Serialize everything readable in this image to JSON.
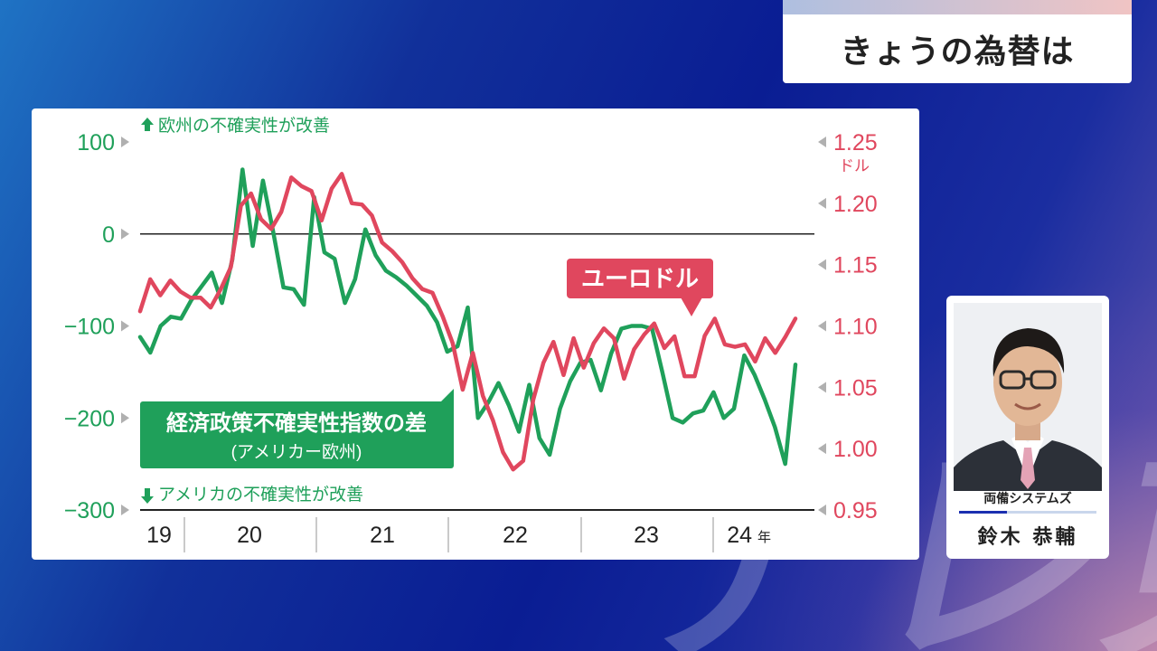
{
  "header": {
    "title": "きょうの為替は"
  },
  "watermark": {
    "text": "テレ東"
  },
  "person": {
    "company": "両備システムズ",
    "name": "鈴木 恭輔"
  },
  "colors": {
    "green": "#1fa05a",
    "red": "#e0475e",
    "axis": "#222222"
  },
  "chart_data": {
    "type": "line",
    "top_note": "欧州の不確実性が改善",
    "bottom_note": "アメリカの不確実性が改善",
    "left_axis": {
      "ticks": [
        "100",
        "0",
        "−100",
        "−200",
        "−300"
      ],
      "range": [
        -300,
        100
      ]
    },
    "right_axis": {
      "ticks": [
        "1.25",
        "1.20",
        "1.15",
        "1.10",
        "1.05",
        "1.00",
        "0.95"
      ],
      "unit": "ドル",
      "range": [
        0.95,
        1.25
      ]
    },
    "x_axis": {
      "labels": [
        "19",
        "20",
        "21",
        "22",
        "23",
        "24"
      ],
      "year_suffix": "年"
    },
    "series": [
      {
        "name": "経済政策不確実性指数の差",
        "sub_label": "(アメリカー欧州)",
        "axis": "left",
        "values": [
          -112,
          -129,
          -100,
          -90,
          -92,
          -72,
          -57,
          -42,
          -75,
          -28,
          70,
          -13,
          58,
          2,
          -58,
          -60,
          -77,
          40,
          -20,
          -27,
          -75,
          -49,
          5,
          -23,
          -40,
          -47,
          -56,
          -67,
          -78,
          -96,
          -128,
          -122,
          -80,
          -200,
          -183,
          -162,
          -186,
          -215,
          -164,
          -222,
          -240,
          -190,
          -160,
          -140,
          -137,
          -170,
          -130,
          -103,
          -100,
          -100,
          -103,
          -150,
          -200,
          -205,
          -195,
          -192,
          -172,
          -200,
          -190,
          -132,
          -153,
          -180,
          -210,
          -250,
          -142
        ]
      },
      {
        "name": "ユーロドル",
        "axis": "right",
        "values": [
          1.112,
          1.138,
          1.125,
          1.137,
          1.128,
          1.123,
          1.123,
          1.115,
          1.13,
          1.148,
          1.198,
          1.208,
          1.187,
          1.179,
          1.193,
          1.221,
          1.214,
          1.21,
          1.186,
          1.212,
          1.224,
          1.2,
          1.199,
          1.19,
          1.168,
          1.161,
          1.152,
          1.139,
          1.13,
          1.127,
          1.108,
          1.086,
          1.048,
          1.078,
          1.043,
          1.023,
          0.997,
          0.983,
          0.99,
          1.04,
          1.07,
          1.087,
          1.06,
          1.09,
          1.066,
          1.086,
          1.098,
          1.09,
          1.057,
          1.081,
          1.093,
          1.102,
          1.082,
          1.0915,
          1.059,
          1.059,
          1.092,
          1.106,
          1.085,
          1.083,
          1.085,
          1.071,
          1.09,
          1.078,
          1.091,
          1.106
        ]
      }
    ]
  }
}
